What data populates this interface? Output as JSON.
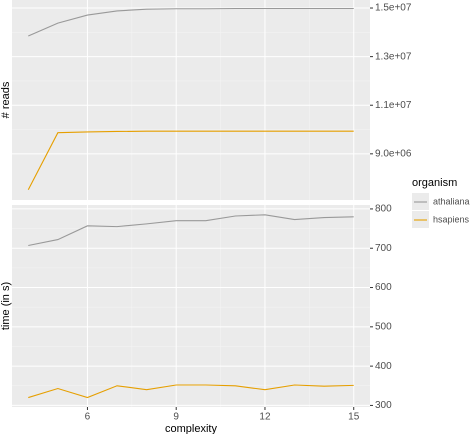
{
  "chart_data": [
    {
      "type": "line",
      "y_label": "# reads",
      "x": [
        4,
        5,
        6,
        7,
        8,
        9,
        10,
        11,
        12,
        13,
        14,
        15
      ],
      "series": [
        {
          "name": "athaliana",
          "color": "#999999",
          "values": [
            13850000,
            14380000,
            14710000,
            14880000,
            14950000,
            14970000,
            14970000,
            14980000,
            14980000,
            14980000,
            14980000,
            14980000
          ]
        },
        {
          "name": "hsapiens",
          "color": "#E69F00",
          "values": [
            7520000,
            9870000,
            9900000,
            9920000,
            9930000,
            9930000,
            9930000,
            9930000,
            9930000,
            9930000,
            9930000,
            9930000
          ]
        }
      ],
      "xlim": [
        3.45,
        15.55
      ],
      "xticks": [
        6,
        9,
        12,
        15
      ],
      "ylim": [
        7100000,
        15330000
      ],
      "yticks": [
        {
          "value": 9000000,
          "label": "9.0e+06"
        },
        {
          "value": 11000000,
          "label": "1.1e+07"
        },
        {
          "value": 13000000,
          "label": "1.3e+07"
        },
        {
          "value": 15000000,
          "label": "1.5e+07"
        }
      ],
      "grid": true,
      "legend": "right",
      "legend_title": "organism"
    },
    {
      "type": "line",
      "x_label": "complexity",
      "y_label": "time (in s)",
      "x": [
        4,
        5,
        6,
        7,
        8,
        9,
        10,
        11,
        12,
        13,
        14,
        15
      ],
      "series": [
        {
          "name": "athaliana",
          "color": "#999999",
          "values": [
            707,
            722,
            757,
            755,
            762,
            770,
            770,
            782,
            785,
            773,
            778,
            780
          ]
        },
        {
          "name": "hsapiens",
          "color": "#E69F00",
          "values": [
            320,
            343,
            320,
            350,
            340,
            352,
            352,
            350,
            340,
            352,
            349,
            351
          ]
        }
      ],
      "xlim": [
        3.45,
        15.55
      ],
      "xticks": [
        6,
        9,
        12,
        15
      ],
      "ylim": [
        296,
        810
      ],
      "yticks": [
        300,
        400,
        500,
        600,
        700,
        800
      ],
      "grid": true
    }
  ]
}
